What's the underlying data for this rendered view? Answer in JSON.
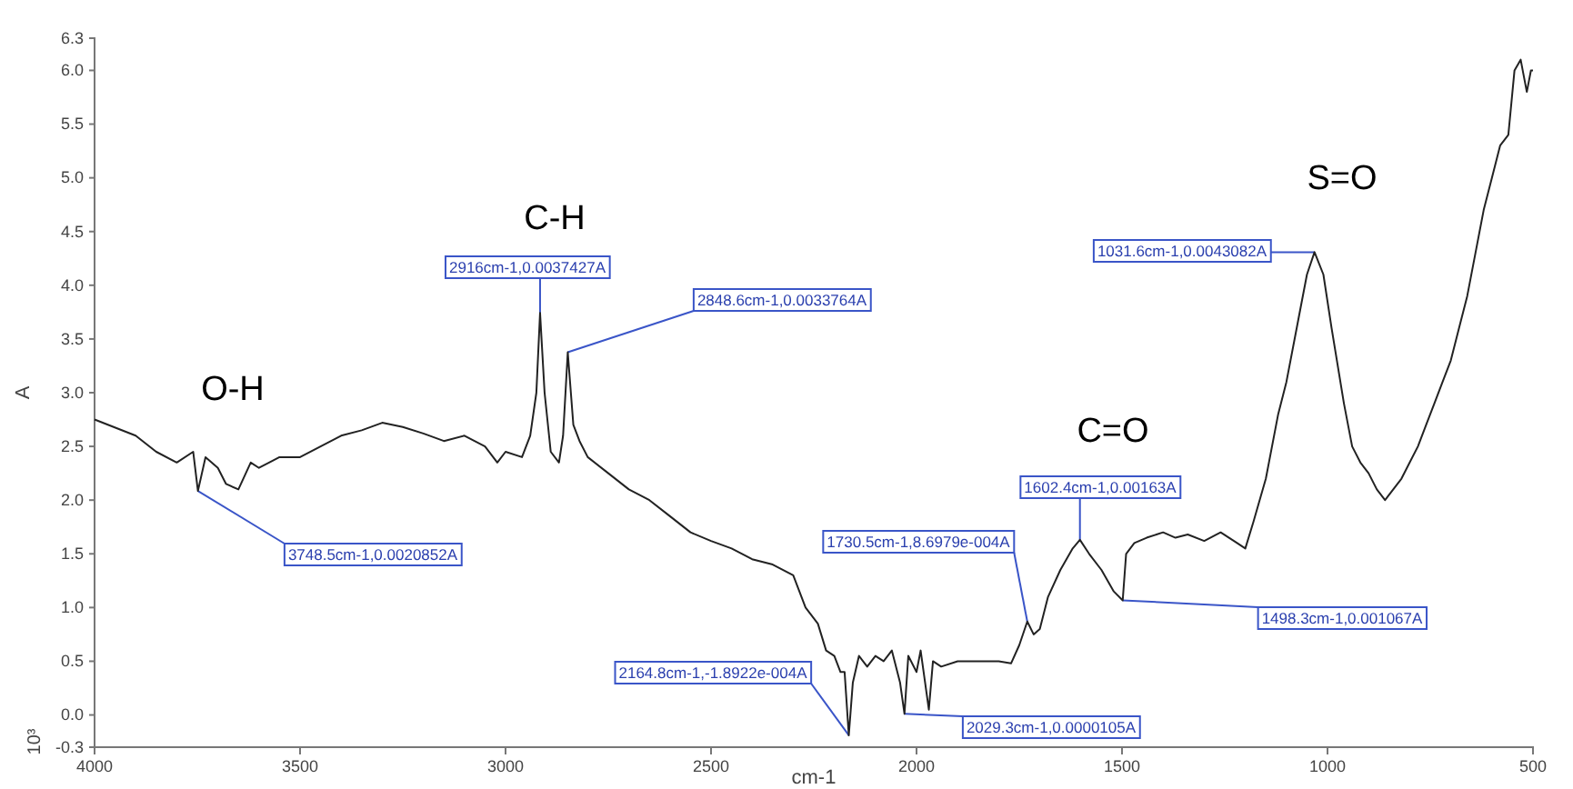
{
  "chart_data": {
    "type": "line",
    "xlabel": "cm-1",
    "ylabel": "A",
    "x": [
      4000,
      3900,
      3850,
      3800,
      3760,
      3748.5,
      3730,
      3700,
      3680,
      3650,
      3620,
      3600,
      3550,
      3500,
      3450,
      3400,
      3350,
      3300,
      3250,
      3200,
      3150,
      3100,
      3050,
      3020,
      3000,
      2960,
      2940,
      2925,
      2916,
      2905,
      2890,
      2870,
      2860,
      2848.6,
      2835,
      2820,
      2800,
      2750,
      2700,
      2650,
      2600,
      2550,
      2500,
      2450,
      2400,
      2350,
      2300,
      2270,
      2240,
      2220,
      2200,
      2185,
      2175,
      2164.8,
      2155,
      2140,
      2120,
      2100,
      2080,
      2060,
      2040,
      2029.3,
      2020,
      2000,
      1990,
      1970,
      1960,
      1940,
      1900,
      1850,
      1800,
      1770,
      1750,
      1730.5,
      1715,
      1700,
      1680,
      1650,
      1620,
      1602.4,
      1580,
      1550,
      1520,
      1498.3,
      1490,
      1470,
      1440,
      1400,
      1370,
      1340,
      1300,
      1260,
      1220,
      1200,
      1180,
      1150,
      1120,
      1100,
      1070,
      1050,
      1031.6,
      1010,
      990,
      960,
      940,
      920,
      900,
      880,
      860,
      840,
      820,
      800,
      780,
      760,
      740,
      720,
      700,
      680,
      660,
      640,
      620,
      600,
      580,
      560,
      545,
      530,
      515,
      505,
      500
    ],
    "series": [
      {
        "color": "#222222",
        "values": [
          2.75,
          2.6,
          2.45,
          2.35,
          2.45,
          2.0852,
          2.4,
          2.3,
          2.15,
          2.1,
          2.35,
          2.3,
          2.4,
          2.4,
          2.5,
          2.6,
          2.65,
          2.72,
          2.68,
          2.62,
          2.55,
          2.6,
          2.5,
          2.35,
          2.45,
          2.4,
          2.6,
          3.0,
          3.7427,
          3.0,
          2.45,
          2.35,
          2.6,
          3.3764,
          2.7,
          2.55,
          2.4,
          2.25,
          2.1,
          2.0,
          1.85,
          1.7,
          1.62,
          1.55,
          1.45,
          1.4,
          1.3,
          1.0,
          0.85,
          0.6,
          0.55,
          0.4,
          0.4,
          -0.18922,
          0.3,
          0.55,
          0.45,
          0.55,
          0.5,
          0.6,
          0.3,
          0.0105,
          0.55,
          0.4,
          0.6,
          0.05,
          0.5,
          0.45,
          0.5,
          0.5,
          0.5,
          0.48,
          0.65,
          0.86979,
          0.75,
          0.8,
          1.1,
          1.35,
          1.55,
          1.63,
          1.5,
          1.35,
          1.15,
          1.067,
          1.5,
          1.6,
          1.65,
          1.7,
          1.65,
          1.68,
          1.62,
          1.7,
          1.6,
          1.55,
          1.8,
          2.2,
          2.8,
          3.1,
          3.7,
          4.1,
          4.3082,
          4.1,
          3.6,
          2.9,
          2.5,
          2.35,
          2.25,
          2.1,
          2.0,
          2.1,
          2.2,
          2.35,
          2.5,
          2.7,
          2.9,
          3.1,
          3.3,
          3.6,
          3.9,
          4.3,
          4.7,
          5.0,
          5.3,
          5.4,
          6.0,
          6.1,
          5.8,
          6.0,
          6.0
        ]
      }
    ],
    "xlim": [
      4000,
      500
    ],
    "xticks": [
      4000,
      3500,
      3000,
      2500,
      2000,
      1500,
      1000,
      500
    ],
    "ylim": [
      -0.3,
      6.3
    ],
    "yticks": [
      {
        "value": -0.3,
        "label": "-0.3"
      },
      {
        "value": 0,
        "label": "0.0"
      },
      0.5,
      {
        "value": 1,
        "label": "1.0"
      },
      1.5,
      {
        "value": 2,
        "label": "2.0"
      },
      2.5,
      {
        "value": 3,
        "label": "3.0"
      },
      3.5,
      {
        "value": 4,
        "label": "4.0"
      },
      4.5,
      {
        "value": 5,
        "label": "5.0"
      },
      5.5,
      {
        "value": 6,
        "label": "6.0"
      },
      6.3
    ],
    "grid": false,
    "annotations": [
      {
        "text": "3748.5cm-1,0.0020852A",
        "x": 3748.5,
        "y": 2.0852
      },
      {
        "text": "2916cm-1,0.0037427A",
        "x": 2916,
        "y": 3.7427
      },
      {
        "text": "2848.6cm-1,0.0033764A",
        "x": 2848.6,
        "y": 3.3764
      },
      {
        "text": "2164.8cm-1,-1.8922e-004A",
        "x": 2164.8,
        "y": -0.18922
      },
      {
        "text": "2029.3cm-1,0.0000105A",
        "x": 2029.3,
        "y": 0.0105
      },
      {
        "text": "1730.5cm-1,8.6979e-004A",
        "x": 1730.5,
        "y": 0.86979
      },
      {
        "text": "1602.4cm-1,0.00163A",
        "x": 1602.4,
        "y": 1.63
      },
      {
        "text": "1498.3cm-1,0.001067A",
        "x": 1498.3,
        "y": 1.067
      },
      {
        "text": "1031.6cm-1,0.0043082A",
        "x": 1031.6,
        "y": 4.3082
      },
      "O-H",
      "C-H",
      "C=O",
      "S=O",
      "10³"
    ]
  }
}
